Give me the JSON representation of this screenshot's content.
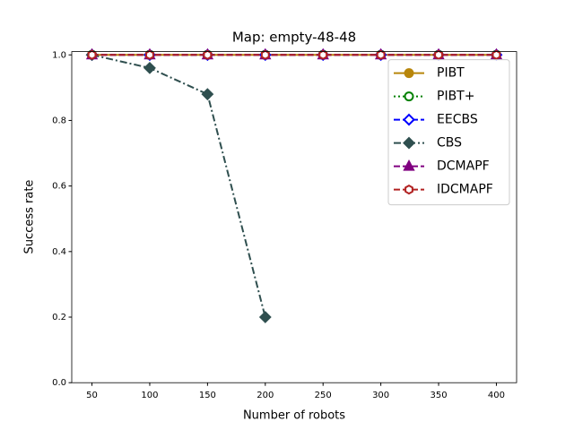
{
  "chart_data": {
    "type": "line",
    "title": "Map: empty-48-48",
    "x_label": "Number of robots",
    "y_label": "Success rate",
    "x": [
      50,
      100,
      150,
      200,
      250,
      300,
      350,
      400
    ],
    "xlim": [
      32.5,
      417.5
    ],
    "xticks": [
      50,
      100,
      150,
      200,
      250,
      300,
      350,
      400
    ],
    "ylim": [
      0,
      1.01
    ],
    "yticks": [
      {
        "value": 0,
        "label": "0.0"
      },
      {
        "value": 0.2,
        "label": "0.2"
      },
      {
        "value": 0.4,
        "label": "0.4"
      },
      {
        "value": 0.6,
        "label": "0.6"
      },
      {
        "value": 0.8,
        "label": "0.8"
      },
      {
        "value": 1,
        "label": "1.0"
      }
    ],
    "legend": "upper right",
    "grid": false,
    "series": [
      {
        "name": "PIBT",
        "color": "#b8860b",
        "linestyle": "solid",
        "marker": "circle",
        "marker_fill": true,
        "values": [
          1,
          1,
          1,
          1,
          1,
          1,
          1,
          1
        ]
      },
      {
        "name": "PIBT+",
        "color": "#008000",
        "linestyle": "dotted",
        "marker": "circle",
        "marker_fill": false,
        "values": [
          1,
          1,
          1,
          1,
          1,
          1,
          1,
          1
        ]
      },
      {
        "name": "EECBS",
        "color": "#0000ff",
        "linestyle": "dashed",
        "marker": "diamond",
        "marker_fill": false,
        "values": [
          1,
          1,
          1,
          1,
          1,
          1,
          1,
          1
        ]
      },
      {
        "name": "CBS",
        "color": "#2f4f4f",
        "linestyle": "dashdot",
        "marker": "diamond",
        "marker_fill": true,
        "values": [
          1,
          0.96,
          0.88,
          0.2,
          null,
          null,
          null,
          null
        ]
      },
      {
        "name": "DCMAPF",
        "color": "#800080",
        "linestyle": "dashed",
        "marker": "triangle",
        "marker_fill": true,
        "values": [
          1,
          1,
          1,
          1,
          1,
          1,
          1,
          1
        ]
      },
      {
        "name": "IDCMAPF",
        "color": "#b22222",
        "linestyle": "dashed",
        "marker": "hexagon",
        "marker_fill": false,
        "values": [
          1,
          1,
          1,
          1,
          1,
          1,
          1,
          1
        ]
      }
    ]
  }
}
